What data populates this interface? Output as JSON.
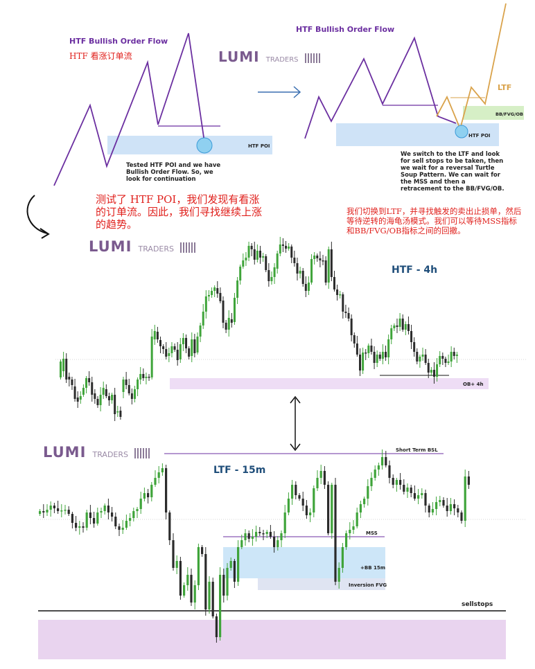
{
  "top_left": {
    "title": "HTF Bullish Order Flow",
    "title_cn": "HTF 看涨订单流",
    "poi_label": "HTF POI",
    "note": "Tested HTF POI and we have Bullish Order Flow. So, we look for continuation",
    "note_cn": "测试了 HTF POI，我们发现有看涨的订单流。因此，我们寻找继续上涨的趋势。"
  },
  "top_right": {
    "title": "HTF Bullish Order Flow",
    "ltf_label": "LTF",
    "bb_label": "BB/FVG/OB",
    "poi_label": "HTF POI",
    "note": "We switch to the LTF and look for sell stops to be taken, then we wait for a reversal Turtle Soup Pattern. We can wait for the MSS  and then a retracement to the BB/FVG/OB.",
    "note_cn": "我们切换到LTF，并寻找触发的卖出止损单，然后等待逆转的海龟汤模式。我们可以等待MSS指标和BB/FVG/OB指标之间的回撤。"
  },
  "logo": {
    "lumi": "LUMI",
    "traders": "TRADERS"
  },
  "chart_data": [
    {
      "type": "candlestick",
      "title": "HTF - 4h",
      "annotations": [
        "OB+ 4h"
      ],
      "closes": [
        522,
        518,
        548,
        548,
        556,
        576,
        580,
        572,
        560,
        546,
        552,
        570,
        576,
        585,
        570,
        560,
        572,
        578,
        570,
        598,
        594,
        602,
        548,
        556,
        568,
        576,
        562,
        548,
        540,
        546,
        544,
        544,
        486,
        478,
        490,
        500,
        504,
        515,
        510,
        500,
        505,
        520,
        497,
        488,
        503,
        515,
        490,
        510,
        486,
        470,
        450,
        428,
        426,
        420,
        415,
        424,
        435,
        466,
        476,
        459,
        466,
        430,
        405,
        385,
        376,
        372,
        355,
        360,
        375,
        362,
        372,
        370,
        390,
        406,
        400,
        386,
        366,
        353,
        355,
        359,
        356,
        372,
        380,
        395,
        391,
        410,
        420,
        408,
        374,
        369,
        373,
        376,
        376,
        408,
        360,
        400,
        418,
        426,
        425,
        450,
        452,
        460,
        484,
        496,
        512,
        535,
        509,
        510,
        499,
        508,
        524,
        512,
        518,
        508,
        516,
        490,
        474,
        470,
        472,
        460,
        476,
        468,
        478,
        494,
        508,
        522,
        515,
        512,
        524,
        538,
        534,
        544,
        526,
        514,
        518,
        524,
        522,
        508,
        514,
        512
      ],
      "opens": [
        545,
        536,
        518,
        544,
        548,
        558,
        574,
        577,
        570,
        560,
        546,
        552,
        568,
        576,
        585,
        570,
        562,
        572,
        578,
        570,
        595,
        593,
        566,
        548,
        556,
        568,
        576,
        562,
        548,
        540,
        546,
        544,
        545,
        490,
        479,
        491,
        500,
        504,
        514,
        510,
        500,
        505,
        519,
        497,
        488,
        503,
        514,
        490,
        509,
        486,
        470,
        450,
        428,
        426,
        420,
        416,
        423,
        434,
        466,
        476,
        461,
        465,
        430,
        405,
        385,
        376,
        372,
        355,
        360,
        375,
        362,
        372,
        370,
        390,
        406,
        400,
        388,
        366,
        353,
        355,
        359,
        356,
        372,
        380,
        395,
        391,
        410,
        420,
        408,
        374,
        369,
        373,
        376,
        376,
        408,
        360,
        400,
        418,
        426,
        425,
        450,
        452,
        460,
        484,
        496,
        512,
        535,
        509,
        510,
        499,
        508,
        524,
        512,
        518,
        508,
        516,
        490,
        474,
        470,
        472,
        460,
        476,
        468,
        478,
        494,
        508,
        522,
        515,
        512,
        524,
        538,
        534,
        544,
        526,
        514,
        518,
        524,
        522,
        508,
        514
      ],
      "levels": {
        "ob_zone": [
          546,
          562
        ],
        "sellstop_line": 542
      }
    },
    {
      "type": "candlestick",
      "title": "LTF - 15m",
      "annotations": [
        "Short Term BSL",
        "MSS",
        "+BB 15m",
        "Inversion FVG",
        "sellstops"
      ],
      "closes": [
        738,
        740,
        736,
        730,
        734,
        738,
        737,
        736,
        742,
        755,
        762,
        760,
        762,
        740,
        748,
        756,
        740,
        738,
        730,
        740,
        746,
        760,
        765,
        762,
        752,
        748,
        738,
        735,
        720,
        712,
        718,
        700,
        690,
        682,
        676,
        740,
        780,
        820,
        810,
        860,
        845,
        830,
        870,
        845,
        790,
        800,
        880,
        840,
        890,
        920,
        830,
        860,
        820,
        810,
        840,
        790,
        780,
        770,
        778,
        775,
        768,
        770,
        771,
        768,
        775,
        790,
        780,
        770,
        740,
        720,
        700,
        715,
        720,
        730,
        744,
        740,
        705,
        690,
        680,
        700,
        770,
        700,
        840,
        820,
        790,
        770,
        765,
        760,
        740,
        728,
        720,
        702,
        690,
        678,
        672,
        660,
        672,
        690,
        700,
        693,
        700,
        710,
        704,
        712,
        720,
        715,
        712,
        730,
        740,
        735,
        725,
        722,
        730,
        738,
        728,
        734,
        740,
        752,
        688,
        700
      ],
      "levels": {
        "bsl_line": 655,
        "mss_line": 775,
        "bb_zone": [
          790,
          835
        ],
        "fvg_zone": [
          835,
          852
        ],
        "sellstop_line": 882
      }
    }
  ],
  "labels": {
    "htf_tf": "HTF - 4h",
    "ltf_tf": "LTF - 15m",
    "ob_4h": "OB+ 4h",
    "short_term_bsl": "Short Term BSL",
    "mss": "MSS",
    "bb_15m": "+BB 15m",
    "inversion_fvg": "Inversion FVG",
    "sellstops": "sellstops"
  },
  "colors": {
    "bull": "#3fa43a",
    "bear": "#2b2b2b",
    "purple_line": "#6b2fa0",
    "ltf_orange": "#d9a24a",
    "poi_blue": "#cfe3f7",
    "ob_pink": "#eeddf5",
    "arrow_blue": "#3a6fb0"
  }
}
